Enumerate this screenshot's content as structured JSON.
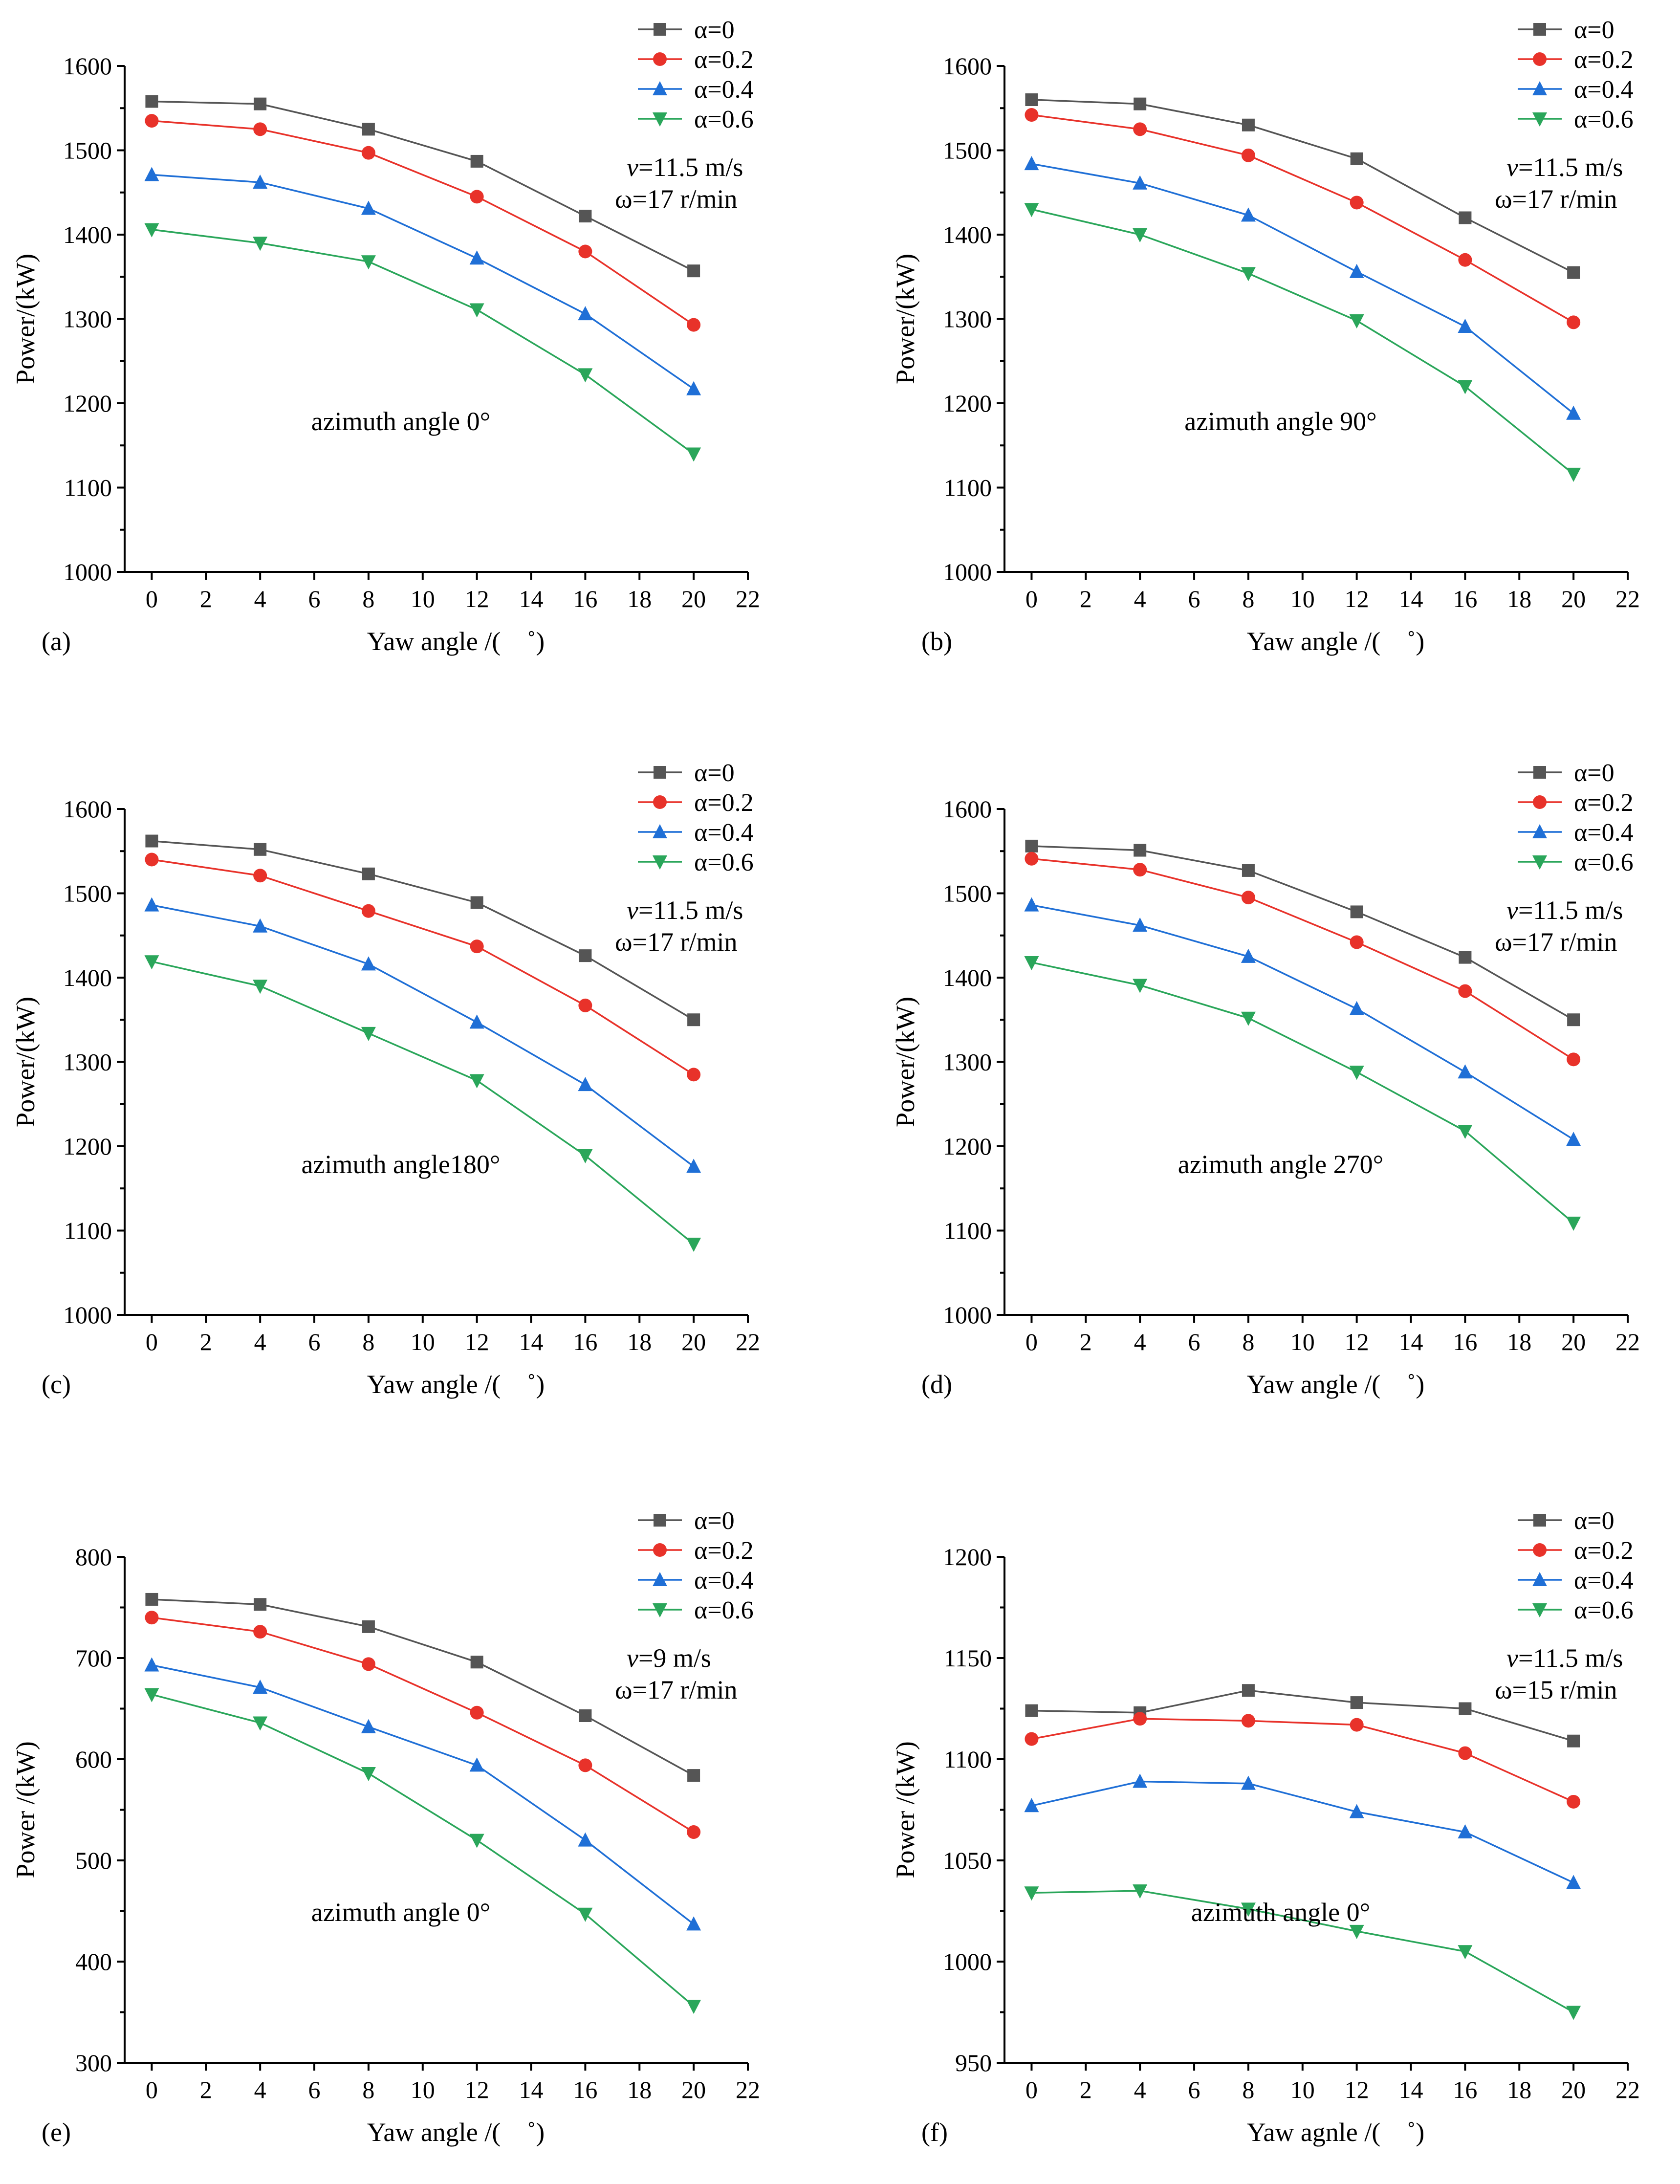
{
  "chart_data": [
    {
      "type": "line",
      "panel_label": "(a)",
      "xlabel": "Yaw angle /(　˚)",
      "ylabel": "Power/(kW)",
      "x_ticks": [
        "0",
        "2",
        "4",
        "6",
        "8",
        "10",
        "12",
        "14",
        "16",
        "18",
        "20",
        "22"
      ],
      "y_ticks": [
        "1000",
        "1100",
        "1200",
        "1300",
        "1400",
        "1500",
        "1600"
      ],
      "xlim": [
        -1,
        22
      ],
      "ylim": [
        1000,
        1600
      ],
      "x": [
        0,
        4,
        8,
        12,
        16,
        20
      ],
      "annotation": "azimuth angle 0°",
      "condition": {
        "v_symbol": "v",
        "v_text": "=11.5 m/s",
        "omega": "ω=17 r/min"
      },
      "series": [
        {
          "name": "α=0",
          "values": [
            1558,
            1555,
            1525,
            1487,
            1422,
            1357
          ]
        },
        {
          "name": "α=0.2",
          "values": [
            1535,
            1525,
            1497,
            1445,
            1380,
            1293
          ]
        },
        {
          "name": "α=0.4",
          "values": [
            1471,
            1462,
            1431,
            1372,
            1306,
            1217
          ]
        },
        {
          "name": "α=0.6",
          "values": [
            1406,
            1390,
            1368,
            1311,
            1234,
            1140
          ]
        }
      ]
    },
    {
      "type": "line",
      "panel_label": "(b)",
      "xlabel": "Yaw angle /(　˚)",
      "ylabel": "Power/(kW)",
      "x_ticks": [
        "0",
        "2",
        "4",
        "6",
        "8",
        "10",
        "12",
        "14",
        "16",
        "18",
        "20",
        "22"
      ],
      "y_ticks": [
        "1000",
        "1100",
        "1200",
        "1300",
        "1400",
        "1500",
        "1600"
      ],
      "xlim": [
        -1,
        22
      ],
      "ylim": [
        1000,
        1600
      ],
      "x": [
        0,
        4,
        8,
        12,
        16,
        20
      ],
      "annotation": "azimuth angle 90°",
      "condition": {
        "v_symbol": "v",
        "v_text": "=11.5 m/s",
        "omega": "ω=17 r/min"
      },
      "series": [
        {
          "name": "α=0",
          "values": [
            1560,
            1555,
            1530,
            1490,
            1420,
            1355
          ]
        },
        {
          "name": "α=0.2",
          "values": [
            1542,
            1525,
            1494,
            1438,
            1370,
            1296
          ]
        },
        {
          "name": "α=0.4",
          "values": [
            1484,
            1461,
            1423,
            1356,
            1291,
            1188
          ]
        },
        {
          "name": "α=0.6",
          "values": [
            1430,
            1400,
            1354,
            1298,
            1220,
            1116
          ]
        }
      ]
    },
    {
      "type": "line",
      "panel_label": "(c)",
      "xlabel": "Yaw angle /(　˚)",
      "ylabel": "Power/(kW)",
      "x_ticks": [
        "0",
        "2",
        "4",
        "6",
        "8",
        "10",
        "12",
        "14",
        "16",
        "18",
        "20",
        "22"
      ],
      "y_ticks": [
        "1000",
        "1100",
        "1200",
        "1300",
        "1400",
        "1500",
        "1600"
      ],
      "xlim": [
        -1,
        22
      ],
      "ylim": [
        1000,
        1600
      ],
      "x": [
        0,
        4,
        8,
        12,
        16,
        20
      ],
      "annotation": "azimuth angle180°",
      "condition": {
        "v_symbol": "v",
        "v_text": "=11.5 m/s",
        "omega": "ω=17 r/min"
      },
      "series": [
        {
          "name": "α=0",
          "values": [
            1562,
            1552,
            1523,
            1489,
            1426,
            1350
          ]
        },
        {
          "name": "α=0.2",
          "values": [
            1540,
            1521,
            1479,
            1437,
            1367,
            1285
          ]
        },
        {
          "name": "α=0.4",
          "values": [
            1486,
            1461,
            1416,
            1347,
            1273,
            1176
          ]
        },
        {
          "name": "α=0.6",
          "values": [
            1419,
            1390,
            1334,
            1278,
            1189,
            1084
          ]
        }
      ]
    },
    {
      "type": "line",
      "panel_label": "(d)",
      "xlabel": "Yaw angle /(　˚)",
      "ylabel": "Power/(kW)",
      "x_ticks": [
        "0",
        "2",
        "4",
        "6",
        "8",
        "10",
        "12",
        "14",
        "16",
        "18",
        "20",
        "22"
      ],
      "y_ticks": [
        "1000",
        "1100",
        "1200",
        "1300",
        "1400",
        "1500",
        "1600"
      ],
      "xlim": [
        -1,
        22
      ],
      "ylim": [
        1000,
        1600
      ],
      "x": [
        0,
        4,
        8,
        12,
        16,
        20
      ],
      "annotation": "azimuth angle 270°",
      "condition": {
        "v_symbol": "v",
        "v_text": "=11.5 m/s",
        "omega": "ω=17 r/min"
      },
      "series": [
        {
          "name": "α=0",
          "values": [
            1556,
            1551,
            1527,
            1478,
            1424,
            1350
          ]
        },
        {
          "name": "α=0.2",
          "values": [
            1541,
            1528,
            1495,
            1442,
            1384,
            1303
          ]
        },
        {
          "name": "α=0.4",
          "values": [
            1486,
            1462,
            1425,
            1363,
            1288,
            1208
          ]
        },
        {
          "name": "α=0.6",
          "values": [
            1418,
            1391,
            1352,
            1288,
            1218,
            1109
          ]
        }
      ]
    },
    {
      "type": "line",
      "panel_label": "(e)",
      "xlabel": "Yaw angle /(　˚)",
      "ylabel": "Power /(kW)",
      "x_ticks": [
        "0",
        "2",
        "4",
        "6",
        "8",
        "10",
        "12",
        "14",
        "16",
        "18",
        "20",
        "22"
      ],
      "y_ticks": [
        "300",
        "400",
        "500",
        "600",
        "700",
        "800"
      ],
      "xlim": [
        -1,
        22
      ],
      "ylim": [
        300,
        800
      ],
      "x": [
        0,
        4,
        8,
        12,
        16,
        20
      ],
      "annotation": "azimuth angle 0°",
      "condition": {
        "v_symbol": "v",
        "v_text": "=9 m/s",
        "omega": "ω=17 r/min"
      },
      "series": [
        {
          "name": "α=0",
          "values": [
            758,
            753,
            731,
            696,
            643,
            584
          ]
        },
        {
          "name": "α=0.2",
          "values": [
            740,
            726,
            694,
            646,
            594,
            528
          ]
        },
        {
          "name": "α=0.4",
          "values": [
            693,
            671,
            632,
            594,
            520,
            437
          ]
        },
        {
          "name": "α=0.6",
          "values": [
            664,
            636,
            586,
            520,
            447,
            356
          ]
        }
      ]
    },
    {
      "type": "line",
      "panel_label": "(f)",
      "xlabel": "Yaw agnle /(　˚)",
      "ylabel": "Power /(kW)",
      "x_ticks": [
        "0",
        "2",
        "4",
        "6",
        "8",
        "10",
        "12",
        "14",
        "16",
        "18",
        "20",
        "22"
      ],
      "y_ticks": [
        "950",
        "1000",
        "1050",
        "1100",
        "1150",
        "1200"
      ],
      "xlim": [
        -1,
        22
      ],
      "ylim": [
        950,
        1200
      ],
      "x": [
        0,
        4,
        8,
        12,
        16,
        20
      ],
      "annotation": "azimuth angle 0°",
      "condition": {
        "v_symbol": "v",
        "v_text": "=11.5 m/s",
        "omega": "ω=15 r/min"
      },
      "series": [
        {
          "name": "α=0",
          "values": [
            1124,
            1123,
            1134,
            1128,
            1125,
            1109
          ]
        },
        {
          "name": "α=0.2",
          "values": [
            1110,
            1120,
            1119,
            1117,
            1103,
            1079
          ]
        },
        {
          "name": "α=0.4",
          "values": [
            1077,
            1089,
            1088,
            1074,
            1064,
            1039
          ]
        },
        {
          "name": "α=0.6",
          "values": [
            1034,
            1035,
            1026,
            1015,
            1005,
            975
          ]
        }
      ]
    }
  ],
  "series_styles": [
    {
      "color": "#555555",
      "marker": "square"
    },
    {
      "color": "#e8322a",
      "marker": "circle"
    },
    {
      "color": "#1f6fd6",
      "marker": "triangle-up"
    },
    {
      "color": "#2aa65a",
      "marker": "triangle-down"
    }
  ]
}
